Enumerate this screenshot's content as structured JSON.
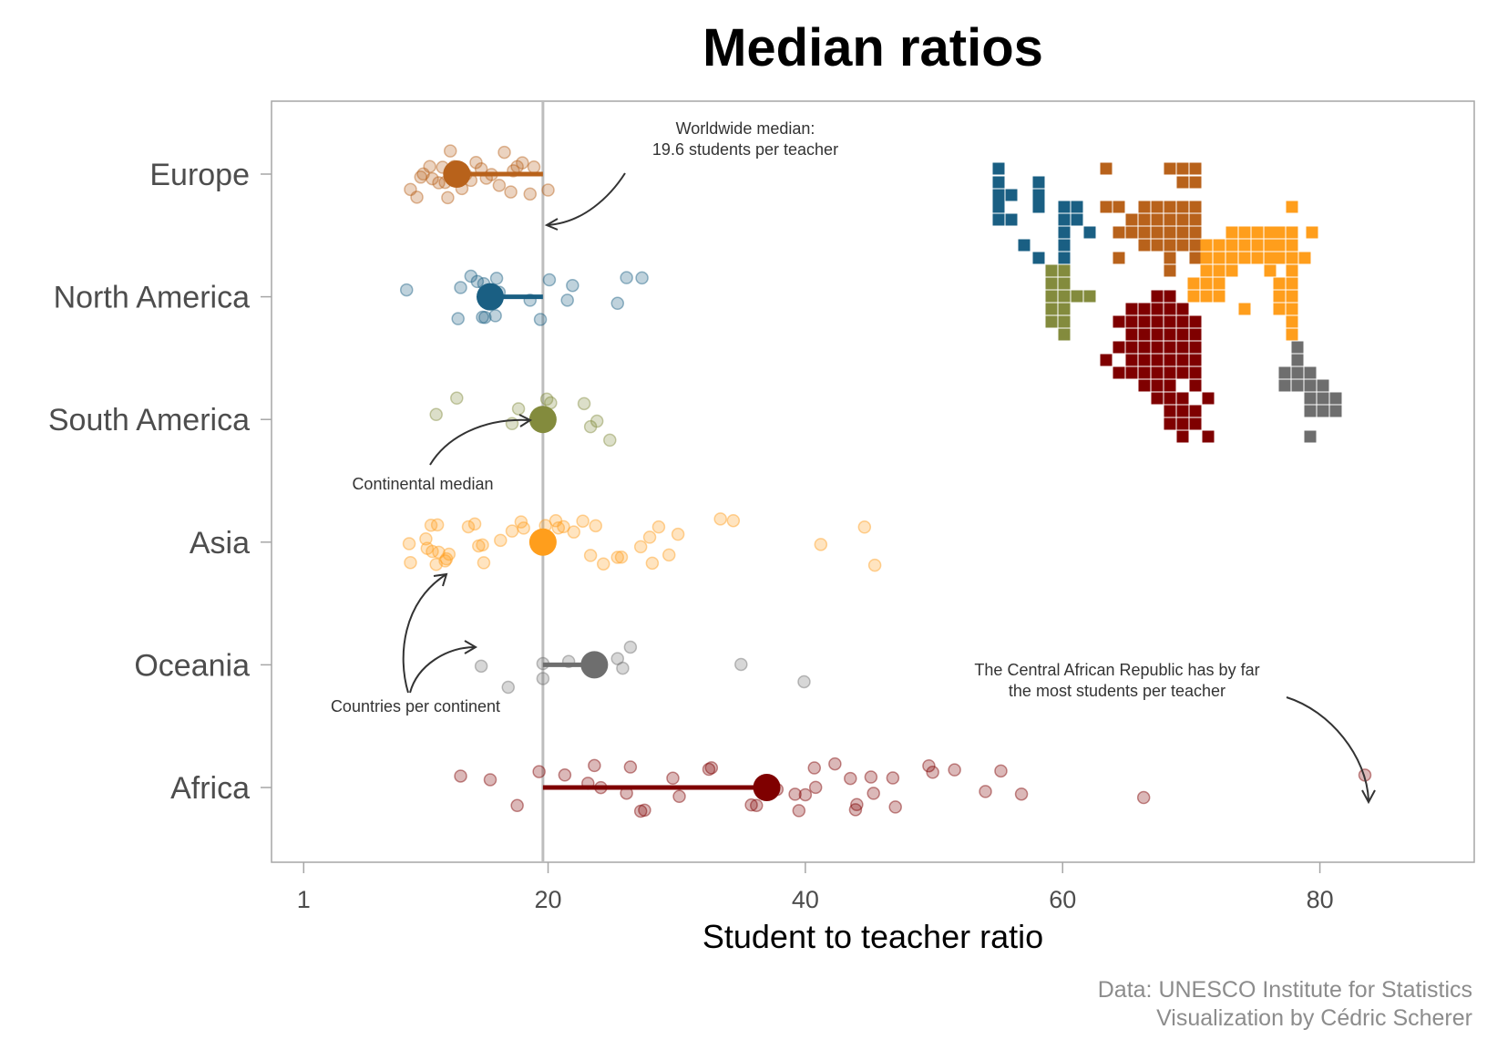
{
  "colors": {
    "Europe": "#B8621B",
    "North America": "#1A5F83",
    "South America": "#838B3D",
    "Asia": "#FF9E1C",
    "Oceania": "#6E6E6E",
    "Africa": "#7F0000",
    "reference_line": "#bdbdbd",
    "annotation": "#333333"
  },
  "chart_data": {
    "type": "scatter",
    "title": "Median ratios",
    "xlabel": "Student to teacher ratio",
    "ylabel": "",
    "x_ticks": [
      1,
      20,
      40,
      60,
      80
    ],
    "xlim": [
      -1.5,
      92
    ],
    "categories": [
      "Europe",
      "North America",
      "South America",
      "Asia",
      "Oceania",
      "Africa"
    ],
    "worldwide_median": 19.6,
    "continental_medians": [
      {
        "continent": "Europe",
        "value": 12.9
      },
      {
        "continent": "North America",
        "value": 15.5
      },
      {
        "continent": "South America",
        "value": 19.6
      },
      {
        "continent": "Asia",
        "value": 19.6
      },
      {
        "continent": "Oceania",
        "value": 23.6
      },
      {
        "continent": "Africa",
        "value": 37.0
      }
    ],
    "countries": [
      {
        "continent": "Europe",
        "values": [
          9.3,
          9.8,
          10.1,
          10.3,
          10.8,
          11.0,
          11.5,
          11.8,
          12.0,
          12.2,
          12.4,
          12.7,
          13.0,
          13.3,
          13.6,
          14.0,
          14.4,
          14.8,
          15.2,
          15.6,
          16.2,
          16.6,
          17.1,
          17.3,
          17.6,
          18.0,
          18.6,
          18.9,
          20.0
        ]
      },
      {
        "continent": "North America",
        "values": [
          9.0,
          13.0,
          13.2,
          14.0,
          14.5,
          14.9,
          15.0,
          15.1,
          15.9,
          16.0,
          16.2,
          18.6,
          19.4,
          20.1,
          21.5,
          21.9,
          25.4,
          26.1,
          27.3
        ]
      },
      {
        "continent": "South America",
        "values": [
          11.3,
          12.9,
          17.2,
          17.7,
          19.9,
          20.2,
          22.8,
          23.3,
          23.8,
          24.8
        ]
      },
      {
        "continent": "Asia",
        "values": [
          9.2,
          9.3,
          10.5,
          10.6,
          10.9,
          11.0,
          11.3,
          11.4,
          11.5,
          12.0,
          12.1,
          12.3,
          13.8,
          14.3,
          14.6,
          14.9,
          15.0,
          16.3,
          17.2,
          17.9,
          18.1,
          19.8,
          20.6,
          20.8,
          21.2,
          22.0,
          22.7,
          23.3,
          23.7,
          24.3,
          25.4,
          25.7,
          27.2,
          27.9,
          28.1,
          28.6,
          29.4,
          30.1,
          33.4,
          34.4,
          41.2,
          44.6,
          45.4
        ]
      },
      {
        "continent": "Oceania",
        "values": [
          14.8,
          16.9,
          19.6,
          19.6,
          21.6,
          25.4,
          25.8,
          26.4,
          35.0,
          39.9
        ]
      },
      {
        "continent": "Africa",
        "values": [
          13.2,
          15.5,
          17.6,
          19.3,
          21.3,
          23.1,
          23.6,
          24.1,
          26.1,
          26.4,
          27.2,
          27.5,
          29.7,
          30.2,
          32.5,
          32.7,
          35.8,
          36.2,
          37.8,
          39.2,
          39.5,
          40.0,
          40.7,
          40.8,
          42.3,
          43.5,
          43.9,
          44.0,
          45.1,
          45.3,
          46.8,
          47.0,
          49.6,
          49.9,
          51.6,
          54.0,
          55.2,
          56.8,
          66.3,
          83.5
        ]
      }
    ]
  },
  "annotations": {
    "worldwide": [
      "Worldwide median:",
      "19.6 students per teacher"
    ],
    "continental": "Continental median",
    "countries": "Countries per continent",
    "car": [
      "The Central African Republic has by far",
      "the most students per teacher"
    ]
  },
  "caption": [
    "Data: UNESCO Institute for Statistics",
    "Visualization by Cédric Scherer"
  ],
  "map": {
    "Europe": [
      [
        1214,
        185
      ],
      [
        1284,
        185
      ],
      [
        1298,
        185
      ],
      [
        1312,
        185
      ],
      [
        1298,
        200
      ],
      [
        1312,
        200
      ],
      [
        1214,
        227
      ],
      [
        1228,
        227
      ],
      [
        1256,
        227
      ],
      [
        1270,
        227
      ],
      [
        1284,
        227
      ],
      [
        1298,
        227
      ],
      [
        1312,
        227
      ],
      [
        1242,
        241
      ],
      [
        1256,
        241
      ],
      [
        1270,
        241
      ],
      [
        1284,
        241
      ],
      [
        1298,
        241
      ],
      [
        1312,
        241
      ],
      [
        1228,
        255
      ],
      [
        1242,
        255
      ],
      [
        1256,
        255
      ],
      [
        1270,
        255
      ],
      [
        1284,
        255
      ],
      [
        1298,
        255
      ],
      [
        1312,
        255
      ],
      [
        1256,
        269
      ],
      [
        1270,
        269
      ],
      [
        1284,
        269
      ],
      [
        1298,
        269
      ],
      [
        1312,
        269
      ],
      [
        1228,
        283
      ],
      [
        1284,
        283
      ],
      [
        1312,
        283
      ],
      [
        1284,
        297
      ]
    ],
    "North America": [
      [
        1096,
        185
      ],
      [
        1096,
        200
      ],
      [
        1140,
        200
      ],
      [
        1096,
        214
      ],
      [
        1110,
        214
      ],
      [
        1140,
        214
      ],
      [
        1096,
        227
      ],
      [
        1140,
        227
      ],
      [
        1168,
        227
      ],
      [
        1182,
        227
      ],
      [
        1096,
        241
      ],
      [
        1110,
        241
      ],
      [
        1168,
        241
      ],
      [
        1182,
        241
      ],
      [
        1168,
        255
      ],
      [
        1196,
        255
      ],
      [
        1124,
        269
      ],
      [
        1168,
        269
      ],
      [
        1140,
        283
      ],
      [
        1168,
        283
      ]
    ],
    "South America": [
      [
        1154,
        297
      ],
      [
        1168,
        297
      ],
      [
        1154,
        311
      ],
      [
        1168,
        311
      ],
      [
        1154,
        325
      ],
      [
        1168,
        325
      ],
      [
        1182,
        325
      ],
      [
        1196,
        325
      ],
      [
        1154,
        339
      ],
      [
        1168,
        339
      ],
      [
        1154,
        353
      ],
      [
        1168,
        353
      ],
      [
        1168,
        367
      ]
    ],
    "Asia": [
      [
        1418,
        227
      ],
      [
        1352,
        255
      ],
      [
        1366,
        255
      ],
      [
        1380,
        255
      ],
      [
        1394,
        255
      ],
      [
        1404,
        255
      ],
      [
        1418,
        255
      ],
      [
        1440,
        255
      ],
      [
        1324,
        269
      ],
      [
        1338,
        269
      ],
      [
        1352,
        269
      ],
      [
        1366,
        269
      ],
      [
        1380,
        269
      ],
      [
        1394,
        269
      ],
      [
        1404,
        269
      ],
      [
        1418,
        269
      ],
      [
        1324,
        283
      ],
      [
        1338,
        283
      ],
      [
        1352,
        283
      ],
      [
        1366,
        283
      ],
      [
        1380,
        283
      ],
      [
        1394,
        283
      ],
      [
        1404,
        283
      ],
      [
        1418,
        283
      ],
      [
        1432,
        283
      ],
      [
        1324,
        297
      ],
      [
        1338,
        297
      ],
      [
        1352,
        297
      ],
      [
        1394,
        297
      ],
      [
        1418,
        297
      ],
      [
        1310,
        311
      ],
      [
        1324,
        311
      ],
      [
        1338,
        311
      ],
      [
        1404,
        311
      ],
      [
        1418,
        311
      ],
      [
        1310,
        325
      ],
      [
        1324,
        325
      ],
      [
        1338,
        325
      ],
      [
        1404,
        325
      ],
      [
        1418,
        325
      ],
      [
        1366,
        339
      ],
      [
        1404,
        339
      ],
      [
        1418,
        339
      ],
      [
        1418,
        353
      ],
      [
        1418,
        367
      ]
    ],
    "Africa": [
      [
        1270,
        325
      ],
      [
        1284,
        325
      ],
      [
        1242,
        339
      ],
      [
        1256,
        339
      ],
      [
        1270,
        339
      ],
      [
        1284,
        339
      ],
      [
        1298,
        339
      ],
      [
        1228,
        353
      ],
      [
        1242,
        353
      ],
      [
        1256,
        353
      ],
      [
        1270,
        353
      ],
      [
        1284,
        353
      ],
      [
        1298,
        353
      ],
      [
        1312,
        353
      ],
      [
        1242,
        367
      ],
      [
        1256,
        367
      ],
      [
        1270,
        367
      ],
      [
        1284,
        367
      ],
      [
        1298,
        367
      ],
      [
        1312,
        367
      ],
      [
        1228,
        381
      ],
      [
        1242,
        381
      ],
      [
        1256,
        381
      ],
      [
        1270,
        381
      ],
      [
        1284,
        381
      ],
      [
        1298,
        381
      ],
      [
        1312,
        381
      ],
      [
        1214,
        395
      ],
      [
        1242,
        395
      ],
      [
        1256,
        395
      ],
      [
        1270,
        395
      ],
      [
        1284,
        395
      ],
      [
        1298,
        395
      ],
      [
        1312,
        395
      ],
      [
        1228,
        409
      ],
      [
        1242,
        409
      ],
      [
        1256,
        409
      ],
      [
        1270,
        409
      ],
      [
        1284,
        409
      ],
      [
        1298,
        409
      ],
      [
        1312,
        409
      ],
      [
        1256,
        423
      ],
      [
        1270,
        423
      ],
      [
        1284,
        423
      ],
      [
        1312,
        423
      ],
      [
        1270,
        437
      ],
      [
        1284,
        437
      ],
      [
        1298,
        437
      ],
      [
        1326,
        437
      ],
      [
        1284,
        451
      ],
      [
        1298,
        451
      ],
      [
        1312,
        451
      ],
      [
        1284,
        465
      ],
      [
        1298,
        465
      ],
      [
        1312,
        465
      ],
      [
        1298,
        479
      ],
      [
        1326,
        479
      ]
    ],
    "Oceania": [
      [
        1424,
        381
      ],
      [
        1424,
        395
      ],
      [
        1410,
        409
      ],
      [
        1424,
        409
      ],
      [
        1438,
        409
      ],
      [
        1410,
        423
      ],
      [
        1424,
        423
      ],
      [
        1438,
        423
      ],
      [
        1452,
        423
      ],
      [
        1438,
        437
      ],
      [
        1452,
        437
      ],
      [
        1466,
        437
      ],
      [
        1438,
        451
      ],
      [
        1452,
        451
      ],
      [
        1466,
        451
      ],
      [
        1438,
        479
      ]
    ]
  }
}
